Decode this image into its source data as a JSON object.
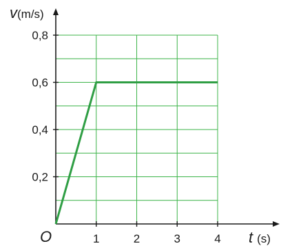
{
  "chart_data": {
    "type": "line",
    "x_label_var": "t",
    "x_label_unit": "(s)",
    "y_label_var": "v",
    "y_label_unit": "(m/s)",
    "origin_label": "O",
    "xlim": [
      0,
      4
    ],
    "ylim": [
      0,
      0.8
    ],
    "x_ticks": [
      {
        "value": 1,
        "label": "1"
      },
      {
        "value": 2,
        "label": "2"
      },
      {
        "value": 3,
        "label": "3"
      },
      {
        "value": 4,
        "label": "4"
      }
    ],
    "y_ticks": [
      {
        "value": 0.2,
        "label": "0,2"
      },
      {
        "value": 0.4,
        "label": "0,4"
      },
      {
        "value": 0.6,
        "label": "0,6"
      },
      {
        "value": 0.8,
        "label": "0,8"
      }
    ],
    "grid": true,
    "grid_minor_y_step": 0.1,
    "series": [
      {
        "color": "#2f9e44",
        "points": [
          {
            "x": 0,
            "y": 0
          },
          {
            "x": 1,
            "y": 0.6
          },
          {
            "x": 4,
            "y": 0.6
          }
        ]
      }
    ],
    "colors": {
      "grid": "#3cb449",
      "axis": "#1a1a1a",
      "line": "#2f9e44"
    }
  }
}
